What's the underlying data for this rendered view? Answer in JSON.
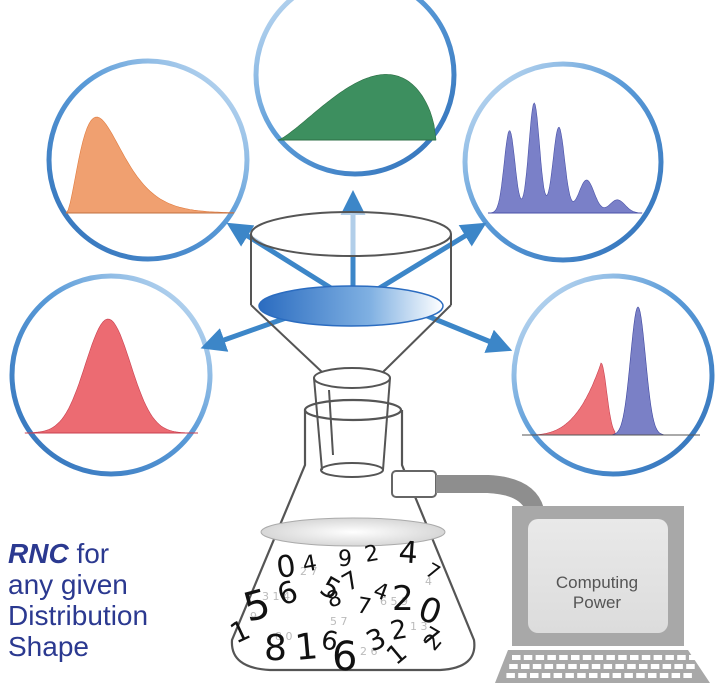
{
  "caption": {
    "emphasis": "RNC",
    "line1_rest": " for",
    "line2": "any given",
    "line3": "Distribution",
    "line4": "Shape"
  },
  "computer": {
    "label_line1": "Computing",
    "label_line2": "Power"
  },
  "flask_digits": [
    "0",
    "4",
    "9",
    "2",
    "4",
    "7",
    "5",
    "6",
    "5",
    "7",
    "4",
    "2",
    "0",
    "8",
    "7",
    "2",
    "1",
    "8",
    "1",
    "6",
    "6",
    "3",
    "1",
    "7",
    "2"
  ],
  "colors": {
    "caption": "#2b3990",
    "arrow": "#3c86c8",
    "circle_border": "#3a78c2",
    "orange": "#f0a070",
    "green": "#3d8f5f",
    "blue": "#6b72c0",
    "red": "#e8606a",
    "computer": "#a8a8a8"
  },
  "distributions": [
    {
      "name": "skewed-orange",
      "color": "orange"
    },
    {
      "name": "triangular-green",
      "color": "green"
    },
    {
      "name": "multimodal-blue",
      "color": "blue"
    },
    {
      "name": "normal-red",
      "color": "red"
    },
    {
      "name": "bimodal-red-blue",
      "color": "red-blue"
    }
  ]
}
